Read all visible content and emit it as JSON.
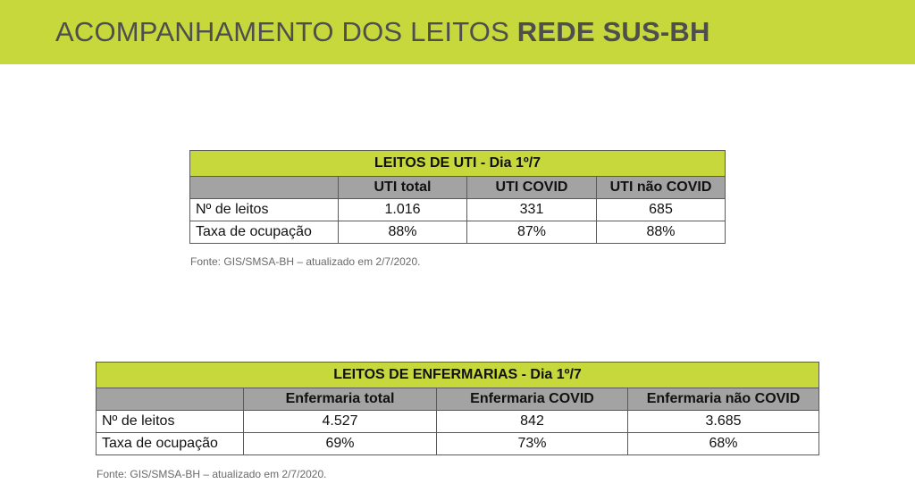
{
  "banner": {
    "title_light": "ACOMPANHAMENTO DOS LEITOS ",
    "title_bold": "REDE SUS-BH"
  },
  "uti_table": {
    "caption": "LEITOS DE UTI - Dia 1º/7",
    "columns": [
      "UTI total",
      "UTI COVID",
      "UTI não COVID"
    ],
    "rows": [
      {
        "label": "Nº de leitos",
        "values": [
          "1.016",
          "331",
          "685"
        ]
      },
      {
        "label": "Taxa de ocupação",
        "values": [
          "88%",
          "87%",
          "88%"
        ]
      }
    ],
    "source": "Fonte: GIS/SMSA-BH – atualizado em 2/7/2020."
  },
  "enf_table": {
    "caption": "LEITOS DE ENFERMARIAS - Dia 1º/7",
    "columns": [
      "Enfermaria total",
      "Enfermaria COVID",
      "Enfermaria não COVID"
    ],
    "rows": [
      {
        "label": "Nº de leitos",
        "values": [
          "4.527",
          "842",
          "3.685"
        ]
      },
      {
        "label": "Taxa de ocupação",
        "values": [
          "69%",
          "73%",
          "68%"
        ]
      }
    ],
    "source": "Fonte: GIS/SMSA-BH – atualizado em 2/7/2020."
  },
  "colors": {
    "accent_green": "#c6d83c",
    "header_gray": "#a3a3a3",
    "title_text": "#4e4e4e"
  }
}
